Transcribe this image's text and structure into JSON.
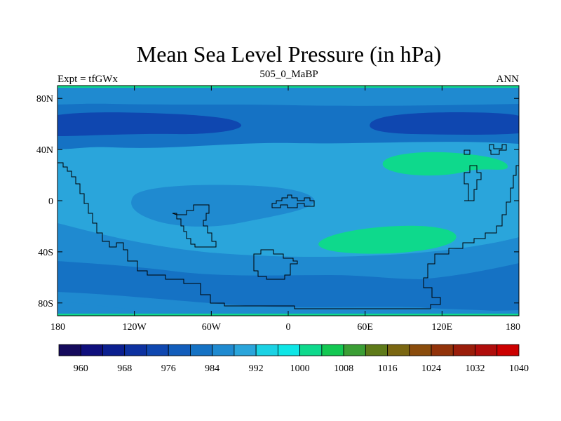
{
  "chart_data": {
    "type": "heatmap",
    "title": "Mean Sea Level Pressure (in hPa)",
    "left_label": "Expt = tfGWx",
    "center_label": "505_0_MaBP",
    "right_label": "ANN",
    "xlim": [
      -180,
      180
    ],
    "ylim": [
      -90,
      90
    ],
    "x_ticks": [
      {
        "value": -180,
        "label": "180"
      },
      {
        "value": -120,
        "label": "120W"
      },
      {
        "value": -60,
        "label": "60W"
      },
      {
        "value": 0,
        "label": "0"
      },
      {
        "value": 60,
        "label": "60E"
      },
      {
        "value": 120,
        "label": "120E"
      },
      {
        "value": 180,
        "label": "180"
      }
    ],
    "y_ticks": [
      {
        "value": 80,
        "label": "80N"
      },
      {
        "value": 40,
        "label": "40N"
      },
      {
        "value": 0,
        "label": "0"
      },
      {
        "value": -40,
        "label": "40S"
      },
      {
        "value": -80,
        "label": "80S"
      }
    ],
    "colorbar": {
      "levels": [
        960,
        964,
        968,
        972,
        976,
        980,
        984,
        988,
        992,
        996,
        1000,
        1004,
        1008,
        1012,
        1016,
        1020,
        1024,
        1028,
        1032,
        1036,
        1040
      ],
      "labels": [
        "960",
        "968",
        "976",
        "984",
        "992",
        "1000",
        "1008",
        "1016",
        "1024",
        "1032",
        "1040"
      ],
      "colors": [
        "#150a5c",
        "#0f0f7c",
        "#0b1f8f",
        "#0d31a0",
        "#0f47b0",
        "#125dbb",
        "#1572c4",
        "#1f8ad0",
        "#2aa5db",
        "#1bd2e4",
        "#0ee6e6",
        "#0ed98c",
        "#13c852",
        "#3b9e35",
        "#5e7a19",
        "#7a6611",
        "#8a4c0c",
        "#92330a",
        "#9a1d0a",
        "#b00d0b",
        "#cc0000"
      ]
    },
    "fields": {
      "background": 992,
      "regions": [
        {
          "name": "northern-high-latitudes",
          "value": 984
        },
        {
          "name": "northern-subpolar-band",
          "value": 988
        },
        {
          "name": "north-west-low",
          "value": 976
        },
        {
          "name": "north-east-low",
          "value": 976
        },
        {
          "name": "equatorial-basin-low",
          "value": 988
        },
        {
          "name": "north-subtropical-high",
          "value": 1004
        },
        {
          "name": "south-subtropical-high",
          "value": 1004
        },
        {
          "name": "southern-ocean-band",
          "value": 988
        },
        {
          "name": "southern-low-belt",
          "value": 984
        },
        {
          "name": "antarctic-margin",
          "value": 988
        }
      ]
    }
  }
}
